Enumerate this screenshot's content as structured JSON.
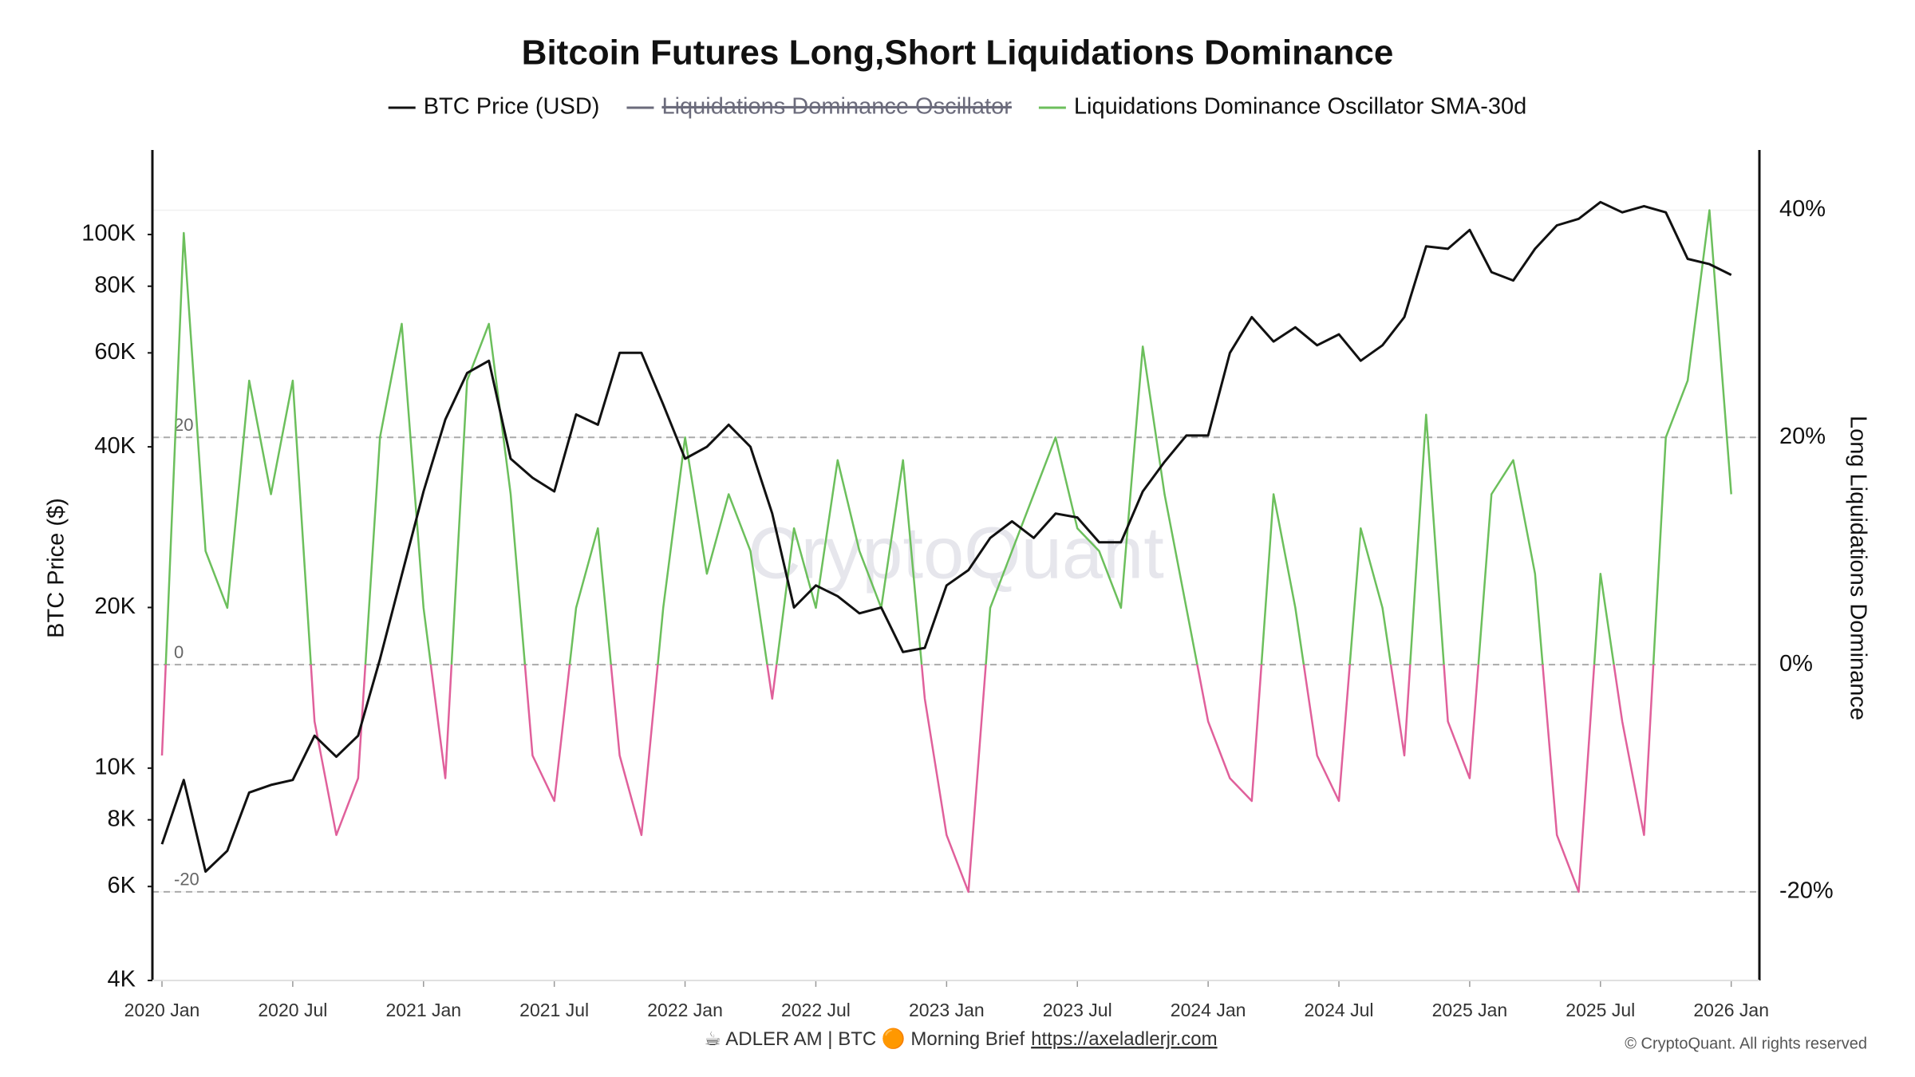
{
  "chart_data": {
    "type": "line",
    "title": "Bitcoin Futures Long,Short Liquidations Dominance",
    "y_label": "BTC Price ($)",
    "y2_label": "Long Liquidations Dominance",
    "watermark": "CryptoQuant",
    "footer": {
      "text": "☕ ADLER AM | BTC 🟠 Morning Brief",
      "link": "https://axeladlerjr.com",
      "copyright": "© CryptoQuant. All rights reserved"
    },
    "x": [
      "2020-01",
      "2020-02",
      "2020-03",
      "2020-04",
      "2020-05",
      "2020-06",
      "2020-07",
      "2020-08",
      "2020-09",
      "2020-10",
      "2020-11",
      "2020-12",
      "2021-01",
      "2021-02",
      "2021-03",
      "2021-04",
      "2021-05",
      "2021-06",
      "2021-07",
      "2021-08",
      "2021-09",
      "2021-10",
      "2021-11",
      "2021-12",
      "2022-01",
      "2022-02",
      "2022-03",
      "2022-04",
      "2022-05",
      "2022-06",
      "2022-07",
      "2022-08",
      "2022-09",
      "2022-10",
      "2022-11",
      "2022-12",
      "2023-01",
      "2023-02",
      "2023-03",
      "2023-04",
      "2023-05",
      "2023-06",
      "2023-07",
      "2023-08",
      "2023-09",
      "2023-10",
      "2023-11",
      "2023-12",
      "2024-01",
      "2024-02",
      "2024-03",
      "2024-04",
      "2024-05",
      "2024-06",
      "2024-07",
      "2024-08",
      "2024-09",
      "2024-10",
      "2024-11",
      "2024-12",
      "2025-01",
      "2025-02",
      "2025-03",
      "2025-04",
      "2025-05",
      "2025-06",
      "2025-07",
      "2025-08",
      "2025-09",
      "2025-10",
      "2025-11",
      "2025-12",
      "2026-01"
    ],
    "xlim": [
      "2020-01",
      "2026-02"
    ],
    "xticks": [
      {
        "value": "2020-01",
        "label": "2020 Jan"
      },
      {
        "value": "2020-07",
        "label": "2020 Jul"
      },
      {
        "value": "2021-01",
        "label": "2021 Jan"
      },
      {
        "value": "2021-07",
        "label": "2021 Jul"
      },
      {
        "value": "2022-01",
        "label": "2022 Jan"
      },
      {
        "value": "2022-07",
        "label": "2022 Jul"
      },
      {
        "value": "2023-01",
        "label": "2023 Jan"
      },
      {
        "value": "2023-07",
        "label": "2023 Jul"
      },
      {
        "value": "2024-01",
        "label": "2024 Jan"
      },
      {
        "value": "2024-07",
        "label": "2024 Jul"
      },
      {
        "value": "2025-01",
        "label": "2025 Jan"
      },
      {
        "value": "2025-07",
        "label": "2025 Jul"
      },
      {
        "value": "2026-01",
        "label": "2026 Jan"
      }
    ],
    "y_scale": "log",
    "ylim": [
      4000,
      144000
    ],
    "yticks": [
      {
        "value": 4000,
        "label": "4K"
      },
      {
        "value": 6000,
        "label": "6K"
      },
      {
        "value": 8000,
        "label": "8K"
      },
      {
        "value": 10000,
        "label": "10K"
      },
      {
        "value": 20000,
        "label": "20K"
      },
      {
        "value": 40000,
        "label": "40K"
      },
      {
        "value": 60000,
        "label": "60K"
      },
      {
        "value": 80000,
        "label": "80K"
      },
      {
        "value": 100000,
        "label": "100K"
      }
    ],
    "y2lim": [
      -27.8,
      45.3
    ],
    "y2ticks": [
      {
        "value": 40,
        "label": "40%"
      },
      {
        "value": 20,
        "label": "20%"
      },
      {
        "value": 0,
        "label": "0%"
      },
      {
        "value": -20,
        "label": "-20%"
      }
    ],
    "y2_dashed_lines": [
      20,
      0,
      -20
    ],
    "series": [
      {
        "name": "BTC Price (USD)",
        "color": "#111111",
        "axis": "y",
        "values": [
          7200,
          9500,
          6400,
          7000,
          9000,
          9300,
          9500,
          11500,
          10500,
          11500,
          16000,
          23000,
          33000,
          45000,
          55000,
          58000,
          38000,
          35000,
          33000,
          46000,
          44000,
          60000,
          60000,
          48000,
          38000,
          40000,
          44000,
          40000,
          30000,
          20000,
          22000,
          21000,
          19500,
          20000,
          16500,
          16800,
          22000,
          23500,
          27000,
          29000,
          27000,
          30000,
          29500,
          26500,
          26500,
          33000,
          37500,
          42000,
          42000,
          60000,
          70000,
          63000,
          67000,
          62000,
          65000,
          58000,
          62000,
          70000,
          95000,
          94000,
          102000,
          85000,
          82000,
          94000,
          104000,
          107000,
          115000,
          110000,
          113000,
          110000,
          90000,
          88000,
          84000
        ]
      },
      {
        "name": "Liquidations Dominance Oscillator",
        "color": "#6b6b7b",
        "hidden": true
      },
      {
        "name": "Liquidations Dominance Oscillator SMA-30d",
        "color": "#6cbf5c",
        "negative_color": "#e0609b",
        "axis": "y2",
        "values": [
          -8,
          38,
          10,
          5,
          25,
          15,
          25,
          -5,
          -15,
          -10,
          20,
          30,
          5,
          -10,
          25,
          30,
          15,
          -8,
          -12,
          5,
          12,
          -8,
          -15,
          5,
          20,
          8,
          15,
          10,
          -3,
          12,
          5,
          18,
          10,
          5,
          18,
          -3,
          -15,
          -20,
          5,
          10,
          15,
          20,
          12,
          10,
          5,
          28,
          15,
          5,
          -5,
          -10,
          -12,
          15,
          5,
          -8,
          -12,
          12,
          5,
          -8,
          22,
          -5,
          -10,
          15,
          18,
          8,
          -15,
          -20,
          8,
          -5,
          -15,
          20,
          25,
          40,
          15
        ]
      }
    ]
  }
}
